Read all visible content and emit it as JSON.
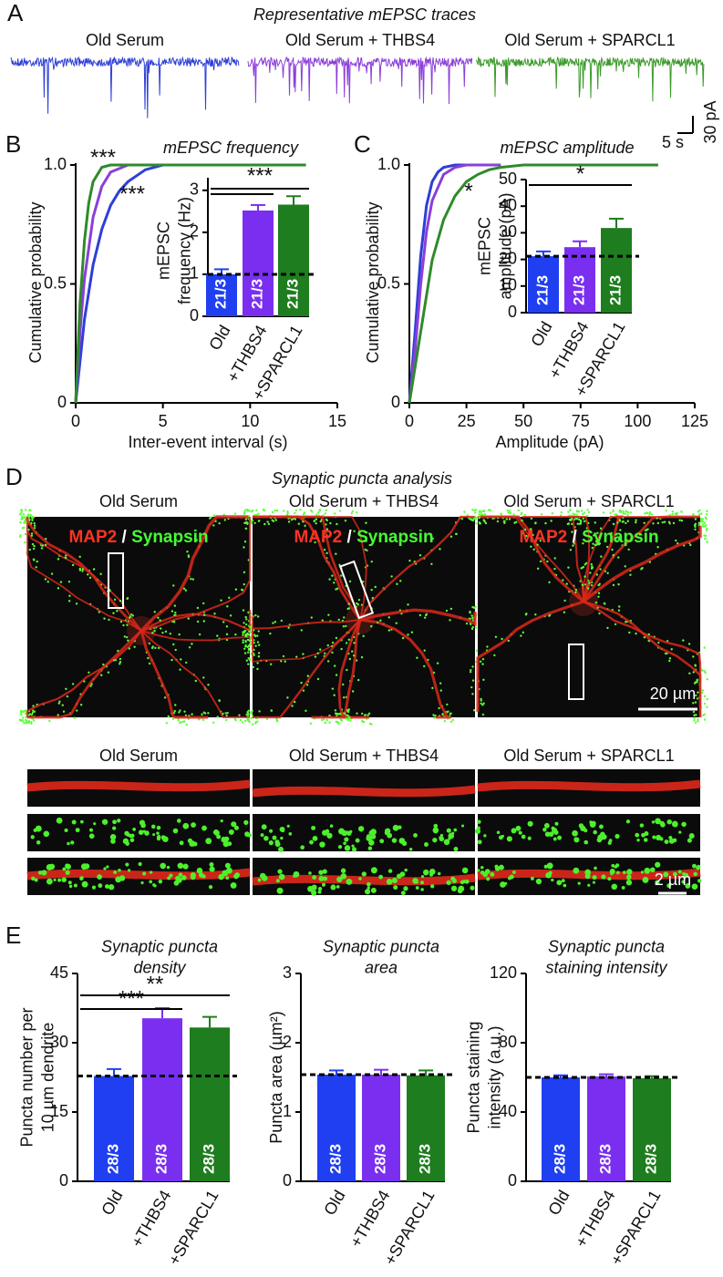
{
  "panel_labels": [
    "A",
    "B",
    "C",
    "D",
    "E"
  ],
  "panel_a": {
    "title": "Representative mEPSC traces",
    "traces": [
      {
        "label": "Old Serum",
        "color": "#2e3fd6"
      },
      {
        "label": "Old Serum + THBS4",
        "color": "#8b3fd9"
      },
      {
        "label": "Old Serum + SPARCL1",
        "color": "#3d9a2c"
      }
    ],
    "scale_x": "5 s",
    "scale_y": "30 pA"
  },
  "chart_data": [
    {
      "type": "line",
      "title": "mEPSC frequency",
      "x_label": "Inter-event interval (s)",
      "y_label": "Cumulative probability",
      "xlim": [
        0,
        15
      ],
      "xticks": [
        0,
        5,
        10,
        15
      ],
      "ylim": [
        0,
        1
      ],
      "yticks": [
        0,
        0.5,
        {
          "value": 1,
          "label": "1.0"
        }
      ],
      "series": [
        {
          "color": "#2e3fd6",
          "x": [
            0,
            0.5,
            1,
            1.5,
            2,
            2.5,
            3,
            4,
            5,
            12.5
          ],
          "values": [
            0,
            0.35,
            0.58,
            0.73,
            0.83,
            0.89,
            0.93,
            0.98,
            1,
            1
          ]
        },
        {
          "color": "#8b3fd9",
          "x": [
            0,
            0.25,
            0.5,
            1,
            1.5,
            2,
            3,
            12.5
          ],
          "values": [
            0,
            0.3,
            0.52,
            0.78,
            0.91,
            0.97,
            1,
            1
          ]
        },
        {
          "color": "#2f8a2a",
          "x": [
            0,
            0.25,
            0.5,
            0.75,
            1,
            1.5,
            2,
            13.2
          ],
          "values": [
            0,
            0.42,
            0.68,
            0.84,
            0.93,
            0.99,
            1,
            1
          ]
        }
      ],
      "annotations": [
        "***",
        "***"
      ]
    },
    {
      "type": "bar",
      "y_label": [
        "mEPSC",
        "frequency (Hz)"
      ],
      "categories": [
        "Old",
        "+THBS4",
        "+SPARCL1"
      ],
      "colors": [
        "#1f3ff0",
        "#7a2ff0",
        "#1e7d1e"
      ],
      "values": [
        1.0,
        2.52,
        2.66
      ],
      "errors": [
        0.12,
        0.13,
        0.2
      ],
      "bar_labels": [
        "21/3",
        "21/3",
        "21/3"
      ],
      "ylim": [
        0,
        3.3
      ],
      "yticks": [
        0,
        1,
        2,
        3
      ],
      "brackets": [
        {
          "label": "***",
          "between": [
            "Old",
            "+SPARCL1"
          ]
        },
        {
          "between": [
            "Old",
            "+THBS4"
          ]
        }
      ]
    },
    {
      "type": "line",
      "title": "mEPSC amplitude",
      "x_label": "Amplitude (pA)",
      "y_label": "Cumulative probability",
      "xlim": [
        0,
        125
      ],
      "xticks": [
        0,
        25,
        50,
        75,
        100,
        125
      ],
      "ylim": [
        0,
        1
      ],
      "yticks": [
        0,
        0.5,
        {
          "value": 1,
          "label": "1.0"
        }
      ],
      "series": [
        {
          "color": "#2e3fd6",
          "x": [
            0,
            2.5,
            5,
            7.5,
            10,
            12.5,
            15,
            20,
            40
          ],
          "values": [
            0,
            0.3,
            0.62,
            0.83,
            0.93,
            0.97,
            0.99,
            1,
            1
          ]
        },
        {
          "color": "#8b3fd9",
          "x": [
            0,
            2.5,
            5,
            7.5,
            10,
            15,
            20,
            25,
            40
          ],
          "values": [
            0,
            0.22,
            0.5,
            0.72,
            0.85,
            0.96,
            0.99,
            1,
            1
          ]
        },
        {
          "color": "#2f8a2a",
          "x": [
            0,
            5,
            10,
            15,
            20,
            25,
            30,
            35,
            40,
            50,
            109
          ],
          "values": [
            0,
            0.3,
            0.6,
            0.77,
            0.87,
            0.93,
            0.96,
            0.98,
            0.99,
            1,
            1
          ]
        }
      ],
      "annotations": [
        "*"
      ]
    },
    {
      "type": "bar",
      "y_label": [
        "mEPSC",
        "amplitude (pA)"
      ],
      "categories": [
        "Old",
        "+THBS4",
        "+SPARCL1"
      ],
      "colors": [
        "#1f3ff0",
        "#7a2ff0",
        "#1e7d1e"
      ],
      "values": [
        21.2,
        24.6,
        31.8
      ],
      "errors": [
        1.8,
        2.2,
        3.5
      ],
      "bar_labels": [
        "21/3",
        "21/3",
        "21/3"
      ],
      "ylim": [
        0,
        50
      ],
      "yticks": [
        0,
        10,
        20,
        30,
        40,
        50
      ],
      "brackets": [
        {
          "label": "*",
          "between": [
            "Old",
            "+SPARCL1"
          ]
        }
      ]
    },
    {
      "type": "bar",
      "title": [
        "Synaptic puncta",
        "density"
      ],
      "y_label": [
        "Puncta number per",
        "10 µm dendrite"
      ],
      "categories": [
        "Old",
        "+THBS4",
        "+SPARCL1"
      ],
      "colors": [
        "#1f3ff0",
        "#7a2ff0",
        "#1e7d1e"
      ],
      "values": [
        22.8,
        35.3,
        33.3
      ],
      "errors": [
        1.5,
        2.2,
        2.3
      ],
      "bar_labels": [
        "28/3",
        "28/3",
        "28/3"
      ],
      "ylim": [
        0,
        45
      ],
      "yticks": [
        0,
        15,
        30,
        45
      ],
      "brackets": [
        {
          "label": "***",
          "between": [
            "Old",
            "+THBS4"
          ]
        },
        {
          "label": "**",
          "between": [
            "Old",
            "+SPARCL1"
          ]
        }
      ]
    },
    {
      "type": "bar",
      "title": [
        "Synaptic puncta",
        "area"
      ],
      "y_label": [
        "Puncta area (µm²)"
      ],
      "categories": [
        "Old",
        "+THBS4",
        "+SPARCL1"
      ],
      "colors": [
        "#1f3ff0",
        "#7a2ff0",
        "#1e7d1e"
      ],
      "values": [
        1.54,
        1.54,
        1.53
      ],
      "errors": [
        0.06,
        0.07,
        0.07
      ],
      "bar_labels": [
        "28/3",
        "28/3",
        "28/3"
      ],
      "ylim": [
        0,
        3
      ],
      "yticks": [
        0,
        1,
        2,
        3
      ]
    },
    {
      "type": "bar",
      "title": [
        "Synaptic puncta",
        "staining intensity"
      ],
      "y_label": [
        "Puncta staining",
        "intensity (a.u.)"
      ],
      "categories": [
        "Old",
        "+THBS4",
        "+SPARCL1"
      ],
      "colors": [
        "#1f3ff0",
        "#7a2ff0",
        "#1e7d1e"
      ],
      "values": [
        60,
        60.5,
        59.5
      ],
      "errors": [
        1.2,
        1.3,
        1.2
      ],
      "bar_labels": [
        "28/3",
        "28/3",
        "28/3"
      ],
      "ylim": [
        0,
        120
      ],
      "yticks": [
        0,
        40,
        80,
        120
      ]
    }
  ],
  "panel_d": {
    "title": "Synaptic puncta analysis",
    "columns": [
      "Old Serum",
      "Old Serum + THBS4",
      "Old Serum + SPARCL1"
    ],
    "stain_labels": [
      "MAP2",
      "/",
      "Synapsin"
    ],
    "scale_bar": "20 µm",
    "zoom_scale_bar": "2 µm"
  }
}
